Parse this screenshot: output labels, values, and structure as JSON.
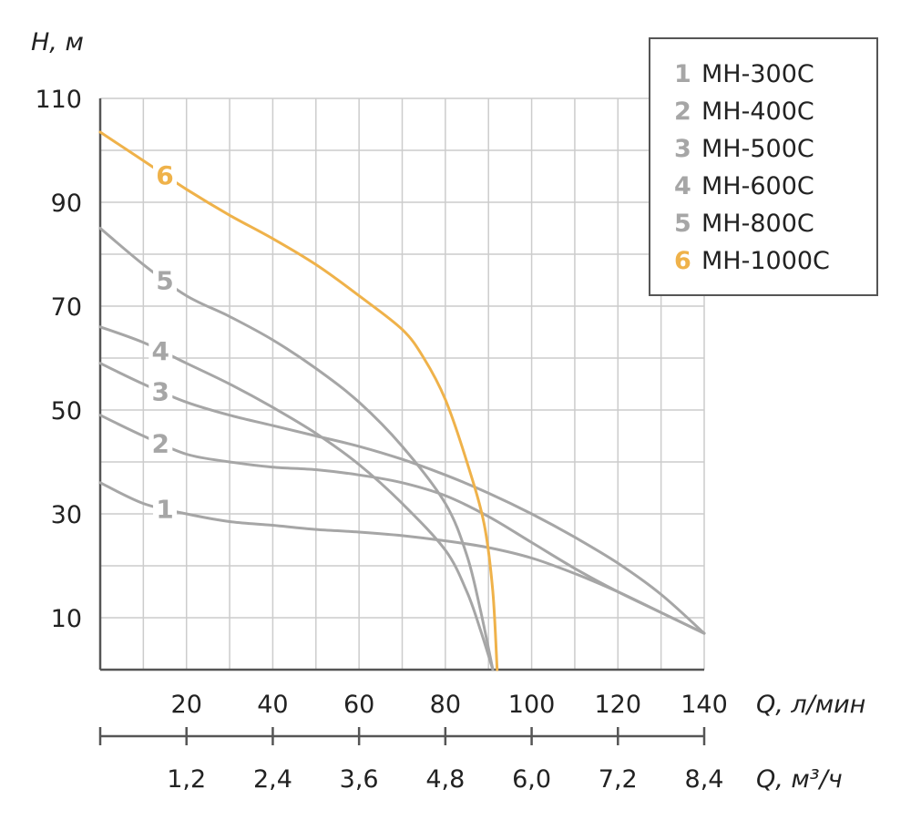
{
  "chart_data": {
    "type": "line",
    "ylabel": "H, м",
    "xlabel": "Q, л/мин",
    "x2label": "Q, м³/ч",
    "xlim": [
      0,
      140
    ],
    "ylim": [
      0,
      110
    ],
    "x_ticks": [
      20,
      40,
      60,
      80,
      100,
      120,
      140
    ],
    "x2_ticks": [
      "1,2",
      "2,4",
      "3,6",
      "4,8",
      "6,0",
      "7,2",
      "8,4"
    ],
    "y_ticks": [
      10,
      30,
      50,
      70,
      90,
      110
    ],
    "grid": true,
    "legend_position": "top-right",
    "colors": {
      "grey": "#a6a6a6",
      "orange": "#efb24a",
      "grid": "#cccccc",
      "axis": "#555555"
    },
    "series": [
      {
        "name": "МН-300С",
        "label": "1",
        "color": "#a6a6a6",
        "x": [
          0,
          10,
          20,
          30,
          40,
          50,
          60,
          70,
          80,
          90,
          100,
          110,
          120,
          130,
          140
        ],
        "y": [
          36,
          32,
          30,
          28.5,
          27.8,
          27,
          26.5,
          25.8,
          24.8,
          23.5,
          21.5,
          18.5,
          15,
          11,
          7
        ]
      },
      {
        "name": "МН-400С",
        "label": "2",
        "color": "#a6a6a6",
        "x": [
          0,
          10,
          20,
          30,
          40,
          50,
          60,
          70,
          80,
          90,
          100,
          110,
          120,
          130,
          140
        ],
        "y": [
          49,
          45,
          41.5,
          40,
          39,
          38.5,
          37.5,
          36,
          33.5,
          29.5,
          24.5,
          19.5,
          15,
          11,
          7
        ]
      },
      {
        "name": "МН-500С",
        "label": "3",
        "color": "#a6a6a6",
        "x": [
          0,
          10,
          20,
          30,
          40,
          50,
          60,
          70,
          80,
          90,
          100,
          110,
          120,
          130,
          140
        ],
        "y": [
          59,
          55,
          51.5,
          49,
          47,
          45,
          43,
          40.5,
          37.5,
          34,
          30,
          25.5,
          20.5,
          14.5,
          7
        ]
      },
      {
        "name": "МН-600С",
        "label": "4",
        "color": "#a6a6a6",
        "x": [
          0,
          10,
          20,
          30,
          40,
          50,
          60,
          70,
          80,
          85,
          88,
          91
        ],
        "y": [
          66,
          63,
          59,
          55,
          50.5,
          45.5,
          39.5,
          32,
          23,
          15,
          8,
          0
        ]
      },
      {
        "name": "МН-800С",
        "label": "5",
        "color": "#a6a6a6",
        "x": [
          0,
          10,
          20,
          30,
          40,
          50,
          60,
          70,
          80,
          85,
          88,
          91
        ],
        "y": [
          85,
          78,
          72,
          68,
          63.5,
          58,
          51.5,
          43,
          32,
          22,
          12,
          0
        ]
      },
      {
        "name": "МН-1000С",
        "label": "6",
        "color": "#efb24a",
        "x": [
          0,
          10,
          20,
          30,
          40,
          50,
          60,
          70,
          75,
          80,
          85,
          89,
          91,
          92
        ],
        "y": [
          103.5,
          98,
          92.5,
          87.5,
          83,
          78,
          72,
          65.5,
          60,
          52,
          40,
          28,
          15,
          0
        ]
      }
    ]
  }
}
